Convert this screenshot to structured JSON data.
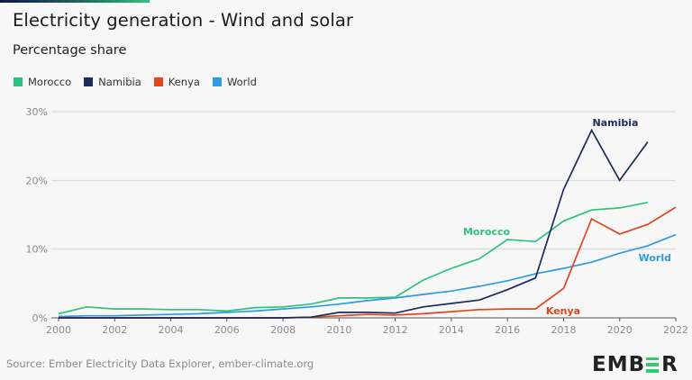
{
  "title": "Electricity generation - Wind and solar",
  "subtitle": "Percentage share",
  "source": "Source: Ember Electricity Data Explorer, ember-climate.org",
  "logo": {
    "prefix": "EMB",
    "suffix": "R",
    "accent_color": "#2ecc71"
  },
  "legend": [
    {
      "name": "Morocco",
      "color": "#2ec27e"
    },
    {
      "name": "Namibia",
      "color": "#1a2b5c"
    },
    {
      "name": "Kenya",
      "color": "#e0461e"
    },
    {
      "name": "World",
      "color": "#2f9be0"
    }
  ],
  "chart_data": {
    "type": "line",
    "title": "Electricity generation - Wind and solar",
    "subtitle": "Percentage share",
    "xlabel": "",
    "ylabel": "",
    "x": [
      2000,
      2001,
      2002,
      2003,
      2004,
      2005,
      2006,
      2007,
      2008,
      2009,
      2010,
      2011,
      2012,
      2013,
      2014,
      2015,
      2016,
      2017,
      2018,
      2019,
      2020,
      2021,
      2022
    ],
    "xlim": [
      2000,
      2022
    ],
    "ylim": [
      0,
      30
    ],
    "x_ticks": [
      2000,
      2002,
      2004,
      2006,
      2008,
      2010,
      2012,
      2014,
      2016,
      2018,
      2020,
      2022
    ],
    "y_ticks": [
      0,
      10,
      20,
      30
    ],
    "y_tick_labels": [
      "0%",
      "10%",
      "20%",
      "30%"
    ],
    "grid": true,
    "legend_position": "top-left",
    "series": [
      {
        "name": "Morocco",
        "color": "#2ec27e",
        "values": [
          0.6,
          1.6,
          1.3,
          1.3,
          1.2,
          1.2,
          1.0,
          1.5,
          1.6,
          2.0,
          2.9,
          2.9,
          3.0,
          5.5,
          7.2,
          8.6,
          11.4,
          11.1,
          14.1,
          15.7,
          16.0,
          16.8,
          null
        ]
      },
      {
        "name": "Namibia",
        "color": "#1a2b5c",
        "values": [
          0,
          0,
          0,
          0,
          0,
          0,
          0,
          0,
          0,
          0.1,
          0.8,
          0.8,
          0.7,
          1.6,
          2.1,
          2.6,
          4.1,
          5.8,
          18.7,
          27.3,
          20.0,
          25.6,
          null
        ]
      },
      {
        "name": "Kenya",
        "color": "#e0461e",
        "values": [
          0,
          0,
          0,
          0,
          0,
          0,
          0,
          0,
          0,
          0.1,
          0.3,
          0.5,
          0.4,
          0.6,
          0.9,
          1.2,
          1.3,
          1.3,
          4.3,
          14.4,
          12.2,
          13.6,
          16.1
        ]
      },
      {
        "name": "World",
        "color": "#2f9be0",
        "values": [
          0.2,
          0.3,
          0.3,
          0.4,
          0.5,
          0.6,
          0.8,
          1.0,
          1.3,
          1.6,
          2.0,
          2.5,
          2.9,
          3.4,
          3.9,
          4.6,
          5.4,
          6.4,
          7.2,
          8.1,
          9.4,
          10.5,
          12.1
        ]
      }
    ],
    "annotations": [
      {
        "text": "Namibia",
        "series": "Namibia"
      },
      {
        "text": "Morocco",
        "series": "Morocco"
      },
      {
        "text": "Kenya",
        "series": "Kenya"
      },
      {
        "text": "World",
        "series": "World"
      }
    ]
  }
}
